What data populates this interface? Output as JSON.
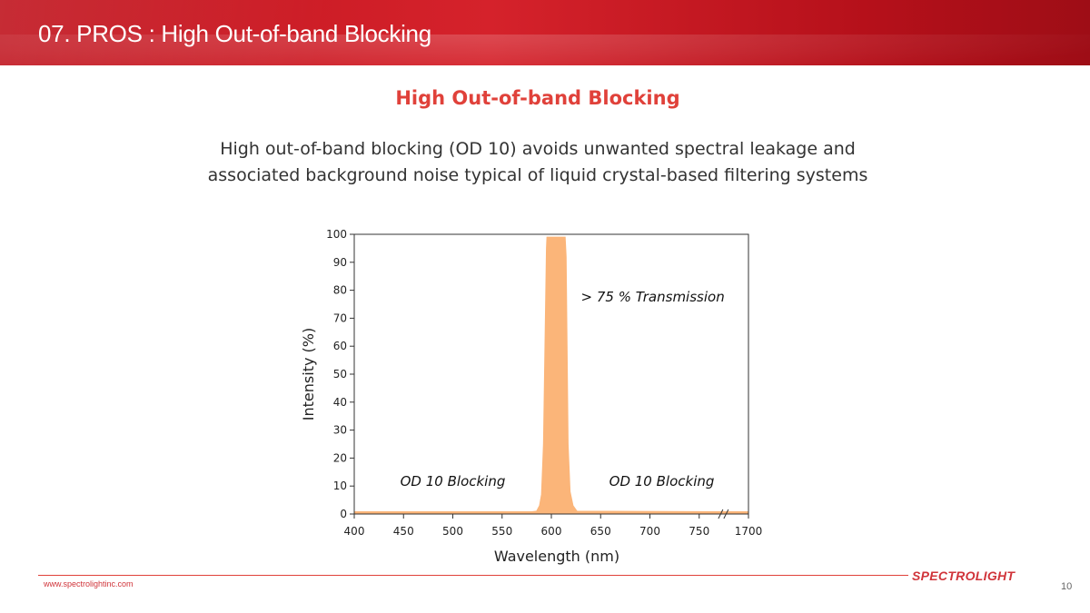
{
  "slide": {
    "title": "07. PROS : High Out-of-band Blocking",
    "heading": "High Out-of-band Blocking",
    "description_lines": [
      "High out-of-band blocking (OD 10) avoids unwanted spectral leakage and",
      "associated background noise typical of liquid crystal-based filtering systems"
    ]
  },
  "footer": {
    "url": "www.spectrolightinc.com",
    "logo": "SPECTROLIGHT",
    "page_number": "10"
  },
  "colors": {
    "accent": "#e0413a",
    "banner": "#c8161f",
    "fill": "#fbb579"
  },
  "chart_data": {
    "type": "area",
    "xlabel": "Wavelength (nm)",
    "ylabel": "Intensity (%)",
    "ylim": [
      0,
      100
    ],
    "xlim": [
      400,
      800
    ],
    "x_ticks": [
      400,
      450,
      500,
      550,
      600,
      650,
      700,
      750
    ],
    "x_break_tick": "1700",
    "y_ticks": [
      0,
      10,
      20,
      30,
      40,
      50,
      60,
      70,
      80,
      90,
      100
    ],
    "grid": false,
    "series": [
      {
        "x": [
          400,
          580,
          585,
          588,
          590,
          592,
          595,
          595.5,
          614,
          615,
          617,
          619,
          622,
          626,
          800
        ],
        "y": [
          0.8,
          0.8,
          1.0,
          3,
          7,
          25,
          95,
          99,
          99,
          92,
          25,
          8,
          3,
          1.0,
          0.8
        ]
      }
    ],
    "annotations": [
      {
        "text": "> 75 % Transmission",
        "x": 630,
        "y": 76
      },
      {
        "text": "OD 10 Blocking",
        "x": 500,
        "y": 10
      },
      {
        "text": "OD 10 Blocking",
        "x": 712,
        "y": 10
      }
    ]
  }
}
